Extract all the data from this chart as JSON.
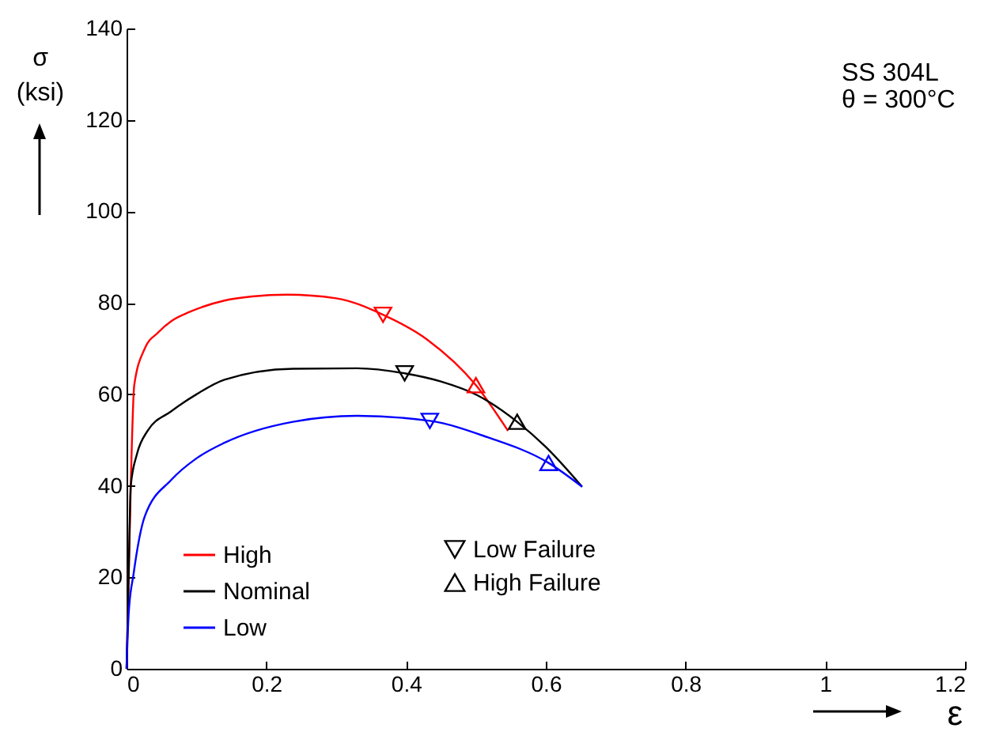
{
  "chart_data": {
    "type": "line",
    "xlabel": "ε",
    "ylabel": "σ (ksi)",
    "annotations": [
      "SS 304L",
      "θ = 300°C"
    ],
    "xlim": [
      0,
      1.2
    ],
    "xticks": [
      0,
      0.2,
      0.4,
      0.6,
      0.8,
      1,
      1.2
    ],
    "ylim": [
      0,
      140
    ],
    "yticks": [
      0,
      20,
      40,
      60,
      80,
      100,
      120,
      140
    ],
    "legend": "bottom left",
    "marker": "none",
    "line_style": "solid",
    "series": [
      {
        "name": "High",
        "color": "#ff0000",
        "x": [
          0,
          0.003,
          0.006,
          0.011,
          0.026,
          0.045,
          0.064,
          0.09,
          0.14,
          0.18,
          0.23,
          0.3,
          0.367,
          0.43,
          0.5,
          0.546
        ],
        "values": [
          0,
          20,
          40,
          62,
          70,
          73.5,
          76,
          78,
          80.5,
          81.4,
          81.8,
          81,
          77.4,
          72,
          62,
          52
        ]
      },
      {
        "name": "Nominal",
        "color": "#000000",
        "x": [
          0,
          0.003,
          0.006,
          0.015,
          0.03,
          0.064,
          0.1,
          0.14,
          0.238,
          0.33,
          0.398,
          0.45,
          0.502,
          0.559,
          0.6,
          0.652
        ],
        "values": [
          0,
          20,
          40,
          47,
          52,
          56.3,
          60,
          63.2,
          65.6,
          65.7,
          64.6,
          62.8,
          59.8,
          54,
          48.5,
          39.8
        ]
      },
      {
        "name": "Low",
        "color": "#0000ff",
        "x": [
          0,
          0.003,
          0.01,
          0.026,
          0.064,
          0.1,
          0.14,
          0.238,
          0.33,
          0.434,
          0.517,
          0.604,
          0.652
        ],
        "values": [
          0,
          12,
          20.7,
          33.3,
          41.3,
          46,
          49.4,
          54,
          55.3,
          54.2,
          50.6,
          45,
          39.8
        ]
      },
      {
        "name": "Low Failure",
        "type": "scatter",
        "marker": "triangle-down",
        "color": "#000000",
        "colors": [
          "#ff0000",
          "#000000",
          "#0000ff"
        ],
        "x": [
          0.367,
          0.398,
          0.434
        ],
        "values": [
          77.4,
          64.6,
          54.2
        ]
      },
      {
        "name": "High Failure",
        "type": "scatter",
        "marker": "triangle",
        "color": "#000000",
        "colors": [
          "#ff0000",
          "#000000",
          "#0000ff"
        ],
        "x": [
          0.5,
          0.559,
          0.604
        ],
        "values": [
          62,
          54,
          45
        ]
      }
    ]
  }
}
